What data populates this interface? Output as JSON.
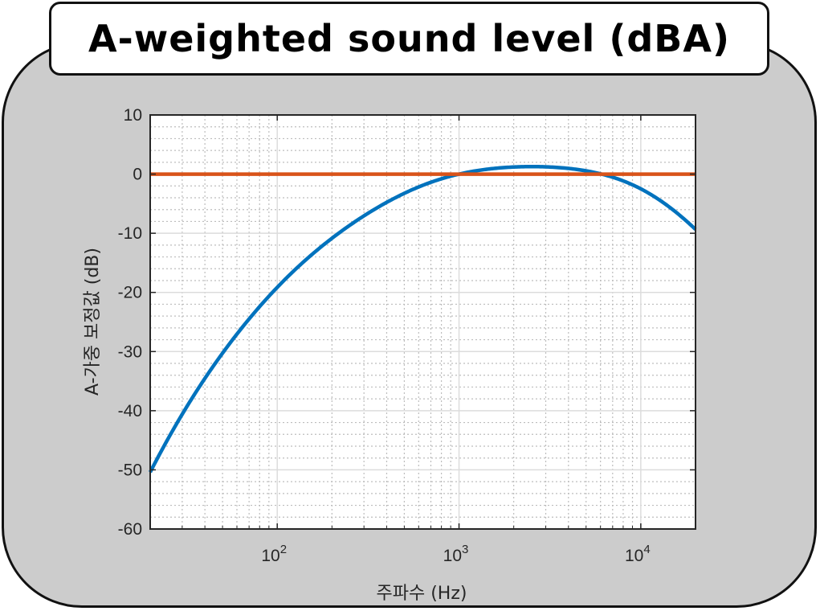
{
  "title": "A-weighted sound level (dBA)",
  "chart_data": {
    "type": "line",
    "xscale": "log",
    "xlim": [
      20,
      20000
    ],
    "ylim": [
      -60,
      10
    ],
    "yticks": [
      10,
      0,
      -10,
      -20,
      -30,
      -40,
      -50,
      -60
    ],
    "xticks": [
      {
        "value": 100,
        "base": "10",
        "exp": "2"
      },
      {
        "value": 1000,
        "base": "10",
        "exp": "3"
      },
      {
        "value": 10000,
        "base": "10",
        "exp": "4"
      }
    ],
    "xlabel": "주파수 (Hz)",
    "ylabel": "A-가중 보정값 (dB)",
    "grid": "major and minor",
    "series": [
      {
        "color": "#0072BD",
        "formula": "A-weighting",
        "x": [
          20,
          31.5,
          63,
          125,
          250,
          500,
          1000,
          2000,
          4000,
          8000,
          16000,
          20000
        ],
        "y": [
          -50.5,
          -39.4,
          -26.2,
          -16.1,
          -8.6,
          -3.2,
          0.0,
          1.2,
          1.0,
          -1.1,
          -6.6,
          -9.3
        ]
      },
      {
        "color": "#D95319",
        "x": [
          20,
          20000
        ],
        "y": [
          0,
          0
        ]
      }
    ]
  }
}
